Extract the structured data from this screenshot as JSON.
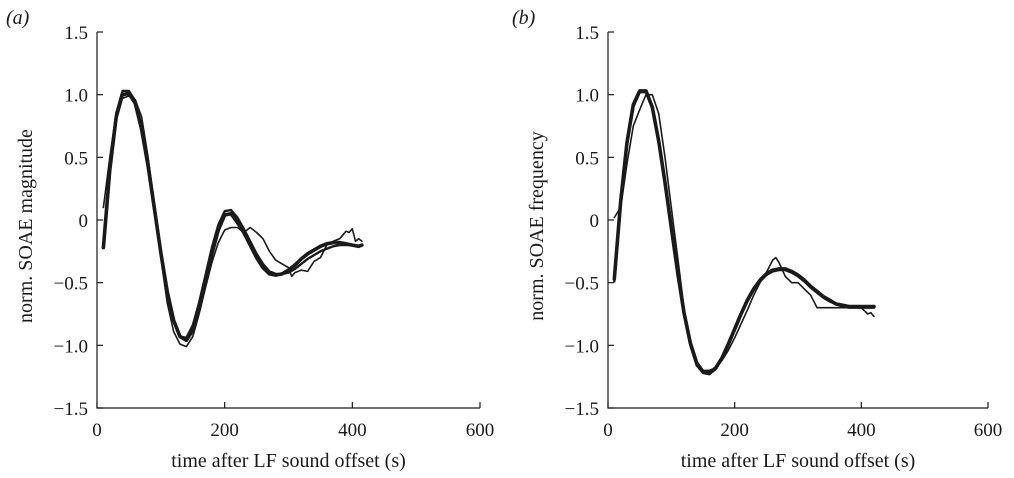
{
  "chart_data": [
    {
      "panel_label": "(a)",
      "type": "line",
      "xlabel": "time after LF sound offset (s)",
      "ylabel": "norm. SOAE magnitude",
      "xlim": [
        0,
        600
      ],
      "ylim": [
        -1.5,
        1.5
      ],
      "xticks": [
        "0",
        "200",
        "400",
        "600"
      ],
      "yticks": [
        "−1.5",
        "−1.0",
        "−0.5",
        "0",
        "0.5",
        "1.0",
        "1.5"
      ],
      "grid": false,
      "series": [
        {
          "x": [
            10,
            20,
            30,
            40,
            50,
            60,
            70,
            80,
            90,
            100,
            110,
            120,
            130,
            140,
            150,
            160,
            170,
            180,
            190,
            200,
            210,
            220,
            230,
            240,
            250,
            260,
            270,
            280,
            290,
            300,
            310,
            320,
            330,
            340,
            350,
            360,
            370,
            380,
            390,
            400,
            410,
            415
          ],
          "y": [
            -0.22,
            0.4,
            0.82,
            1.0,
            1.01,
            0.93,
            0.72,
            0.43,
            0.09,
            -0.26,
            -0.57,
            -0.8,
            -0.93,
            -0.96,
            -0.88,
            -0.71,
            -0.49,
            -0.27,
            -0.08,
            0.04,
            0.05,
            -0.02,
            -0.1,
            -0.2,
            -0.3,
            -0.38,
            -0.43,
            -0.44,
            -0.43,
            -0.4,
            -0.36,
            -0.31,
            -0.27,
            -0.24,
            -0.21,
            -0.19,
            -0.18,
            -0.18,
            -0.19,
            -0.2,
            -0.21,
            -0.2
          ]
        },
        {
          "x": [
            10,
            20,
            30,
            40,
            50,
            60,
            70,
            80,
            90,
            100,
            110,
            120,
            130,
            140,
            150,
            160,
            170,
            180,
            190,
            200,
            210,
            220,
            230,
            240,
            250,
            260,
            270,
            280,
            290,
            300,
            310,
            320,
            330,
            340,
            350,
            360,
            370,
            380,
            390,
            400,
            410,
            415
          ],
          "y": [
            -0.2,
            0.42,
            0.85,
            1.03,
            1.03,
            0.95,
            0.75,
            0.47,
            0.12,
            -0.24,
            -0.56,
            -0.8,
            -0.93,
            -0.94,
            -0.84,
            -0.66,
            -0.44,
            -0.22,
            -0.04,
            0.07,
            0.08,
            0.02,
            -0.07,
            -0.17,
            -0.27,
            -0.35,
            -0.41,
            -0.43,
            -0.43,
            -0.42,
            -0.39,
            -0.35,
            -0.31,
            -0.28,
            -0.25,
            -0.23,
            -0.21,
            -0.2,
            -0.2,
            -0.2,
            -0.21,
            -0.2
          ]
        },
        {
          "x": [
            10,
            20,
            30,
            40,
            50,
            60,
            70,
            80,
            90,
            100,
            110,
            120,
            130,
            140,
            150,
            160,
            170,
            180,
            190,
            200,
            210,
            220,
            230,
            240,
            250,
            260,
            270,
            280,
            290,
            300,
            305,
            310,
            320,
            330,
            340,
            350,
            360,
            370,
            380,
            390,
            395,
            400,
            405,
            410,
            415
          ],
          "y": [
            0.1,
            0.5,
            0.86,
            0.97,
            0.99,
            0.96,
            0.82,
            0.5,
            0.1,
            -0.3,
            -0.66,
            -0.89,
            -0.99,
            -1.01,
            -0.93,
            -0.75,
            -0.54,
            -0.34,
            -0.18,
            -0.08,
            -0.06,
            -0.06,
            -0.1,
            -0.06,
            -0.1,
            -0.15,
            -0.25,
            -0.32,
            -0.35,
            -0.38,
            -0.45,
            -0.42,
            -0.4,
            -0.41,
            -0.33,
            -0.3,
            -0.2,
            -0.17,
            -0.15,
            -0.09,
            -0.1,
            -0.07,
            -0.17,
            -0.15,
            -0.17
          ]
        }
      ]
    },
    {
      "panel_label": "(b)",
      "type": "line",
      "xlabel": "time after LF sound offset (s)",
      "ylabel": "norm. SOAE frequency",
      "xlim": [
        0,
        600
      ],
      "ylim": [
        -1.5,
        1.5
      ],
      "xticks": [
        "0",
        "200",
        "400",
        "600"
      ],
      "yticks": [
        "−1.5",
        "−1.0",
        "−0.5",
        "0",
        "0.5",
        "1.0",
        "1.5"
      ],
      "grid": false,
      "series": [
        {
          "x": [
            10,
            20,
            30,
            40,
            50,
            60,
            70,
            80,
            90,
            100,
            110,
            120,
            130,
            140,
            150,
            160,
            170,
            180,
            190,
            200,
            210,
            220,
            230,
            240,
            250,
            260,
            270,
            280,
            290,
            300,
            310,
            320,
            330,
            340,
            350,
            360,
            370,
            380,
            390,
            400,
            410,
            420
          ],
          "y": [
            -0.47,
            0.15,
            0.62,
            0.92,
            1.03,
            1.03,
            0.9,
            0.63,
            0.3,
            -0.06,
            -0.42,
            -0.74,
            -0.98,
            -1.14,
            -1.21,
            -1.22,
            -1.18,
            -1.1,
            -0.99,
            -0.87,
            -0.75,
            -0.64,
            -0.55,
            -0.48,
            -0.43,
            -0.4,
            -0.39,
            -0.39,
            -0.41,
            -0.44,
            -0.48,
            -0.53,
            -0.57,
            -0.61,
            -0.64,
            -0.67,
            -0.68,
            -0.69,
            -0.69,
            -0.69,
            -0.69,
            -0.69
          ]
        },
        {
          "x": [
            10,
            20,
            30,
            40,
            50,
            60,
            70,
            80,
            90,
            100,
            110,
            120,
            130,
            140,
            150,
            160,
            170,
            180,
            190,
            200,
            210,
            220,
            230,
            240,
            250,
            260,
            270,
            280,
            290,
            300,
            310,
            320,
            330,
            340,
            350,
            360,
            370,
            380,
            390,
            400,
            410,
            420
          ],
          "y": [
            -0.49,
            0.13,
            0.6,
            0.9,
            1.02,
            1.02,
            0.89,
            0.62,
            0.28,
            -0.08,
            -0.44,
            -0.76,
            -1.0,
            -1.16,
            -1.22,
            -1.23,
            -1.19,
            -1.11,
            -1.0,
            -0.88,
            -0.76,
            -0.65,
            -0.56,
            -0.49,
            -0.44,
            -0.41,
            -0.4,
            -0.4,
            -0.42,
            -0.45,
            -0.49,
            -0.54,
            -0.58,
            -0.62,
            -0.65,
            -0.67,
            -0.69,
            -0.7,
            -0.7,
            -0.7,
            -0.7,
            -0.7
          ]
        },
        {
          "x": [
            10,
            20,
            30,
            40,
            50,
            60,
            70,
            80,
            90,
            100,
            110,
            120,
            130,
            140,
            150,
            160,
            170,
            180,
            190,
            200,
            210,
            220,
            230,
            240,
            250,
            260,
            265,
            270,
            280,
            290,
            300,
            310,
            320,
            330,
            340,
            350,
            360,
            370,
            380,
            390,
            400,
            410,
            415,
            420
          ],
          "y": [
            0.02,
            0.1,
            0.45,
            0.75,
            0.88,
            1.0,
            1.0,
            0.85,
            0.5,
            0.1,
            -0.3,
            -0.7,
            -1.0,
            -1.15,
            -1.2,
            -1.2,
            -1.18,
            -1.12,
            -1.04,
            -0.94,
            -0.83,
            -0.72,
            -0.6,
            -0.5,
            -0.42,
            -0.32,
            -0.3,
            -0.34,
            -0.45,
            -0.5,
            -0.5,
            -0.55,
            -0.6,
            -0.7,
            -0.7,
            -0.7,
            -0.7,
            -0.7,
            -0.7,
            -0.7,
            -0.7,
            -0.75,
            -0.74,
            -0.77
          ]
        }
      ]
    }
  ]
}
